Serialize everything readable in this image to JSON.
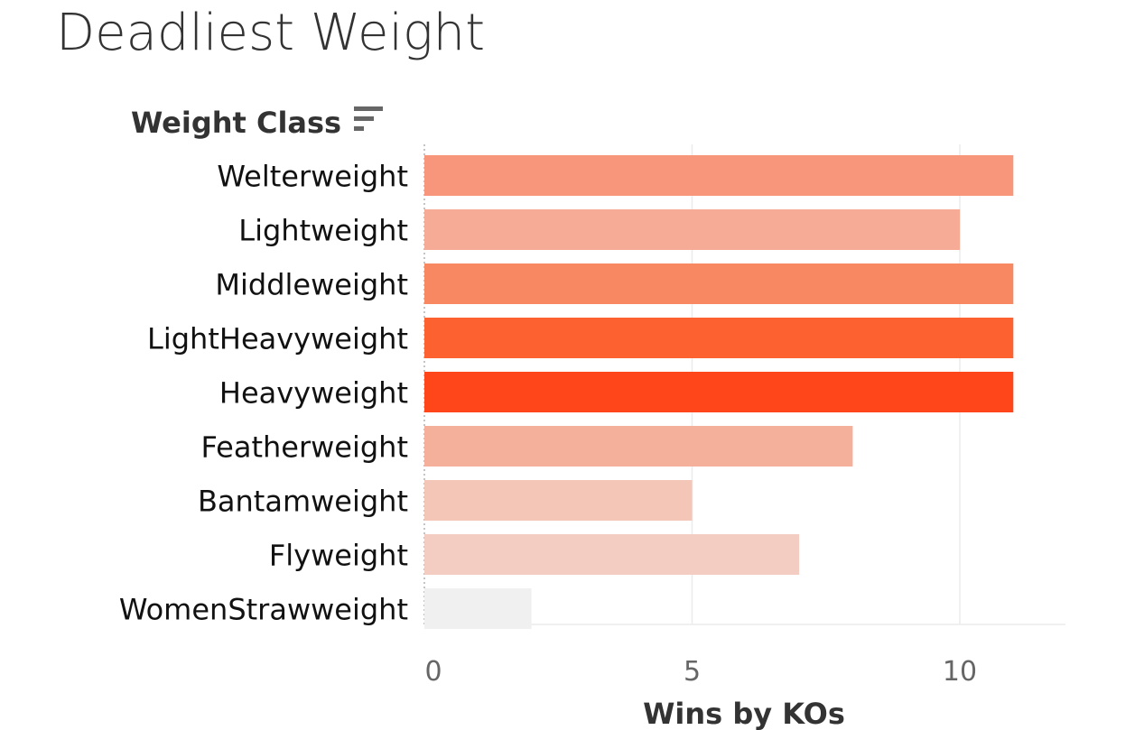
{
  "chart_data": {
    "type": "bar",
    "orientation": "horizontal",
    "title": "Deadliest Weight",
    "row_header": "Weight Class",
    "xlabel": "Wins by KOs",
    "categories": [
      "Welterweight",
      "Lightweight",
      "Middleweight",
      "LightHeavyweight",
      "Heavyweight",
      "Featherweight",
      "Bantamweight",
      "Flyweight",
      "WomenStrawweight"
    ],
    "values": [
      11,
      10,
      11,
      11,
      11,
      8,
      5,
      7,
      2
    ],
    "bar_colors": [
      "#f7967a",
      "#f6ab96",
      "#f78862",
      "#fd6130",
      "#ff451a",
      "#f5b09b",
      "#f4c6b7",
      "#f3cdc1",
      "#f0f0f0"
    ],
    "xlim": [
      0,
      12
    ],
    "xticks": [
      0,
      5,
      10
    ],
    "xtick_labels": [
      "0",
      "5",
      "10"
    ],
    "grid": true,
    "sort_icon": "sort-descending-icon"
  }
}
